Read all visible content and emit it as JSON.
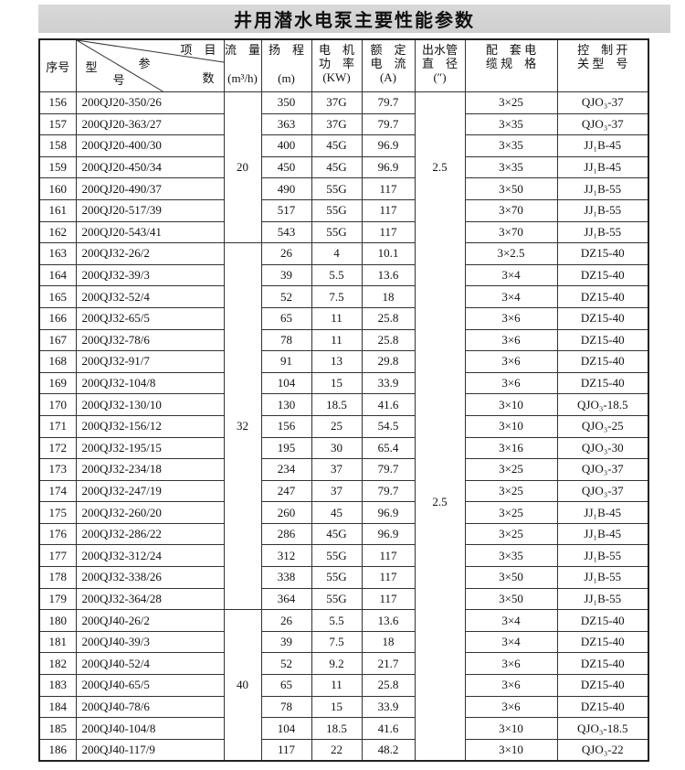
{
  "title": "井用潜水电泵主要性能参数",
  "header": {
    "seq": "序号",
    "diag_item": "项　目",
    "diag_param": "参",
    "diag_num": "数",
    "diag_type": "型",
    "diag_no": "号",
    "flow": "流　量",
    "flow_unit": "(m³/h)",
    "head": "扬　程",
    "head_unit": "(m)",
    "power": "电　机 功　率",
    "power_unit": "(KW)",
    "current": "额　定 电　流",
    "current_unit": "(A)",
    "pipe": "出水管 直　径",
    "pipe_unit": "(″)",
    "cable": "配　套 电　缆 规　格",
    "switch": "控　制 开　关 型　号"
  },
  "flow_groups": [
    "20",
    "32",
    "40"
  ],
  "pipe_groups": [
    "2.5",
    "2.5"
  ],
  "rows": [
    [
      "156",
      "200QJ20-350/26",
      "350",
      "37G",
      "79.7",
      "3×25",
      "QJO₃-37"
    ],
    [
      "157",
      "200QJ20-363/27",
      "363",
      "37G",
      "79.7",
      "3×35",
      "QJO₃-37"
    ],
    [
      "158",
      "200QJ20-400/30",
      "400",
      "45G",
      "96.9",
      "3×35",
      "JJ₁B-45"
    ],
    [
      "159",
      "200QJ20-450/34",
      "450",
      "45G",
      "96.9",
      "3×35",
      "JJ₁B-45"
    ],
    [
      "160",
      "200QJ20-490/37",
      "490",
      "55G",
      "117",
      "3×50",
      "JJ₁B-55"
    ],
    [
      "161",
      "200QJ20-517/39",
      "517",
      "55G",
      "117",
      "3×70",
      "JJ₁B-55"
    ],
    [
      "162",
      "200QJ20-543/41",
      "543",
      "55G",
      "117",
      "3×70",
      "JJ₁B-55"
    ],
    [
      "163",
      "200QJ32-26/2",
      "26",
      "4",
      "10.1",
      "3×2.5",
      "DZ15-40"
    ],
    [
      "164",
      "200QJ32-39/3",
      "39",
      "5.5",
      "13.6",
      "3×4",
      "DZ15-40"
    ],
    [
      "165",
      "200QJ32-52/4",
      "52",
      "7.5",
      "18",
      "3×4",
      "DZ15-40"
    ],
    [
      "166",
      "200QJ32-65/5",
      "65",
      "11",
      "25.8",
      "3×6",
      "DZ15-40"
    ],
    [
      "167",
      "200QJ32-78/6",
      "78",
      "11",
      "25.8",
      "3×6",
      "DZ15-40"
    ],
    [
      "168",
      "200QJ32-91/7",
      "91",
      "13",
      "29.8",
      "3×6",
      "DZ15-40"
    ],
    [
      "169",
      "200QJ32-104/8",
      "104",
      "15",
      "33.9",
      "3×6",
      "DZ15-40"
    ],
    [
      "170",
      "200QJ32-130/10",
      "130",
      "18.5",
      "41.6",
      "3×10",
      "QJO₃-18.5"
    ],
    [
      "171",
      "200QJ32-156/12",
      "156",
      "25",
      "54.5",
      "3×10",
      "QJO₃-25"
    ],
    [
      "172",
      "200QJ32-195/15",
      "195",
      "30",
      "65.4",
      "3×16",
      "QJO₃-30"
    ],
    [
      "173",
      "200QJ32-234/18",
      "234",
      "37",
      "79.7",
      "3×25",
      "QJO₃-37"
    ],
    [
      "174",
      "200QJ32-247/19",
      "247",
      "37",
      "79.7",
      "3×25",
      "QJO₃-37"
    ],
    [
      "175",
      "200QJ32-260/20",
      "260",
      "45",
      "96.9",
      "3×25",
      "JJ₁B-45"
    ],
    [
      "176",
      "200QJ32-286/22",
      "286",
      "45G",
      "96.9",
      "3×25",
      "JJ₁B-45"
    ],
    [
      "177",
      "200QJ32-312/24",
      "312",
      "55G",
      "117",
      "3×35",
      "JJ₁B-55"
    ],
    [
      "178",
      "200QJ32-338/26",
      "338",
      "55G",
      "117",
      "3×50",
      "JJ₁B-55"
    ],
    [
      "179",
      "200QJ32-364/28",
      "364",
      "55G",
      "117",
      "3×50",
      "JJ₁B-55"
    ],
    [
      "180",
      "200QJ40-26/2",
      "26",
      "5.5",
      "13.6",
      "3×4",
      "DZ15-40"
    ],
    [
      "181",
      "200QJ40-39/3",
      "39",
      "7.5",
      "18",
      "3×4",
      "DZ15-40"
    ],
    [
      "182",
      "200QJ40-52/4",
      "52",
      "9.2",
      "21.7",
      "3×6",
      "DZ15-40"
    ],
    [
      "183",
      "200QJ40-65/5",
      "65",
      "11",
      "25.8",
      "3×6",
      "DZ15-40"
    ],
    [
      "184",
      "200QJ40-78/6",
      "78",
      "15",
      "33.9",
      "3×6",
      "DZ15-40"
    ],
    [
      "185",
      "200QJ40-104/8",
      "104",
      "18.5",
      "41.6",
      "3×10",
      "QJO₃-18.5"
    ],
    [
      "186",
      "200QJ40-117/9",
      "117",
      "22",
      "48.2",
      "3×10",
      "QJO₃-22"
    ]
  ]
}
